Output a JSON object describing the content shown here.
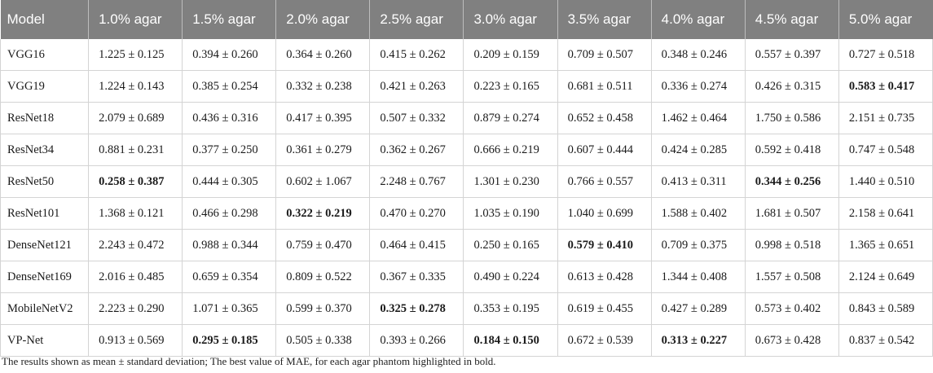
{
  "table": {
    "headers": [
      "Model",
      "1.0% agar",
      "1.5% agar",
      "2.0% agar",
      "2.5% agar",
      "3.0% agar",
      "3.5% agar",
      "4.0% agar",
      "4.5% agar",
      "5.0% agar"
    ],
    "rows": [
      {
        "model": "VGG16",
        "values": [
          "1.225 ± 0.125",
          "0.394 ± 0.260",
          "0.364 ± 0.260",
          "0.415 ± 0.262",
          "0.209 ± 0.159",
          "0.709 ± 0.507",
          "0.348 ± 0.246",
          "0.557 ± 0.397",
          "0.727 ± 0.518"
        ],
        "bold": []
      },
      {
        "model": "VGG19",
        "values": [
          "1.224 ± 0.143",
          "0.385 ± 0.254",
          "0.332 ± 0.238",
          "0.421 ± 0.263",
          "0.223 ± 0.165",
          "0.681 ± 0.511",
          "0.336 ± 0.274",
          "0.426 ± 0.315",
          "0.583 ± 0.417"
        ],
        "bold": [
          8
        ]
      },
      {
        "model": "ResNet18",
        "values": [
          "2.079 ± 0.689",
          "0.436 ± 0.316",
          "0.417 ± 0.395",
          "0.507 ± 0.332",
          "0.879 ± 0.274",
          "0.652 ± 0.458",
          "1.462 ± 0.464",
          "1.750 ± 0.586",
          "2.151 ± 0.735"
        ],
        "bold": []
      },
      {
        "model": "ResNet34",
        "values": [
          "0.881 ± 0.231",
          "0.377 ± 0.250",
          "0.361 ± 0.279",
          "0.362 ± 0.267",
          "0.666 ± 0.219",
          "0.607 ± 0.444",
          "0.424 ± 0.285",
          "0.592 ± 0.418",
          "0.747 ± 0.548"
        ],
        "bold": []
      },
      {
        "model": "ResNet50",
        "values": [
          "0.258 ± 0.387",
          "0.444 ± 0.305",
          "0.602 ± 1.067",
          "2.248 ± 0.767",
          "1.301 ± 0.230",
          "0.766 ± 0.557",
          "0.413 ± 0.311",
          "0.344 ± 0.256",
          "1.440 ± 0.510"
        ],
        "bold": [
          0,
          7
        ]
      },
      {
        "model": "ResNet101",
        "values": [
          "1.368 ± 0.121",
          "0.466 ± 0.298",
          "0.322 ± 0.219",
          "0.470 ± 0.270",
          "1.035 ± 0.190",
          "1.040 ± 0.699",
          "1.588 ± 0.402",
          "1.681 ± 0.507",
          "2.158 ± 0.641"
        ],
        "bold": [
          2
        ]
      },
      {
        "model": "DenseNet121",
        "values": [
          "2.243 ± 0.472",
          "0.988 ± 0.344",
          "0.759 ± 0.470",
          "0.464 ± 0.415",
          "0.250 ± 0.165",
          "0.579 ± 0.410",
          "0.709 ± 0.375",
          "0.998 ± 0.518",
          "1.365 ± 0.651"
        ],
        "bold": [
          5
        ]
      },
      {
        "model": "DenseNet169",
        "values": [
          "2.016 ± 0.485",
          "0.659 ± 0.354",
          "0.809 ± 0.522",
          "0.367 ± 0.335",
          "0.490 ± 0.224",
          "0.613 ± 0.428",
          "1.344 ± 0.408",
          "1.557 ± 0.508",
          "2.124 ± 0.649"
        ],
        "bold": []
      },
      {
        "model": "MobileNetV2",
        "values": [
          "2.223 ± 0.290",
          "1.071 ± 0.365",
          "0.599 ± 0.370",
          "0.325 ± 0.278",
          "0.353 ± 0.195",
          "0.619 ± 0.455",
          "0.427 ± 0.289",
          "0.573 ± 0.402",
          "0.843 ± 0.589"
        ],
        "bold": [
          3
        ]
      },
      {
        "model": "VP-Net",
        "values": [
          "0.913 ± 0.569",
          "0.295 ± 0.185",
          "0.505 ± 0.338",
          "0.393 ± 0.266",
          "0.184 ± 0.150",
          "0.672 ± 0.539",
          "0.313 ± 0.227",
          "0.673 ± 0.428",
          "0.837 ± 0.542"
        ],
        "bold": [
          1,
          4,
          6
        ]
      }
    ]
  },
  "footnote": "The results shown as mean ± standard deviation; The best value of MAE, for each agar phantom highlighted in bold."
}
